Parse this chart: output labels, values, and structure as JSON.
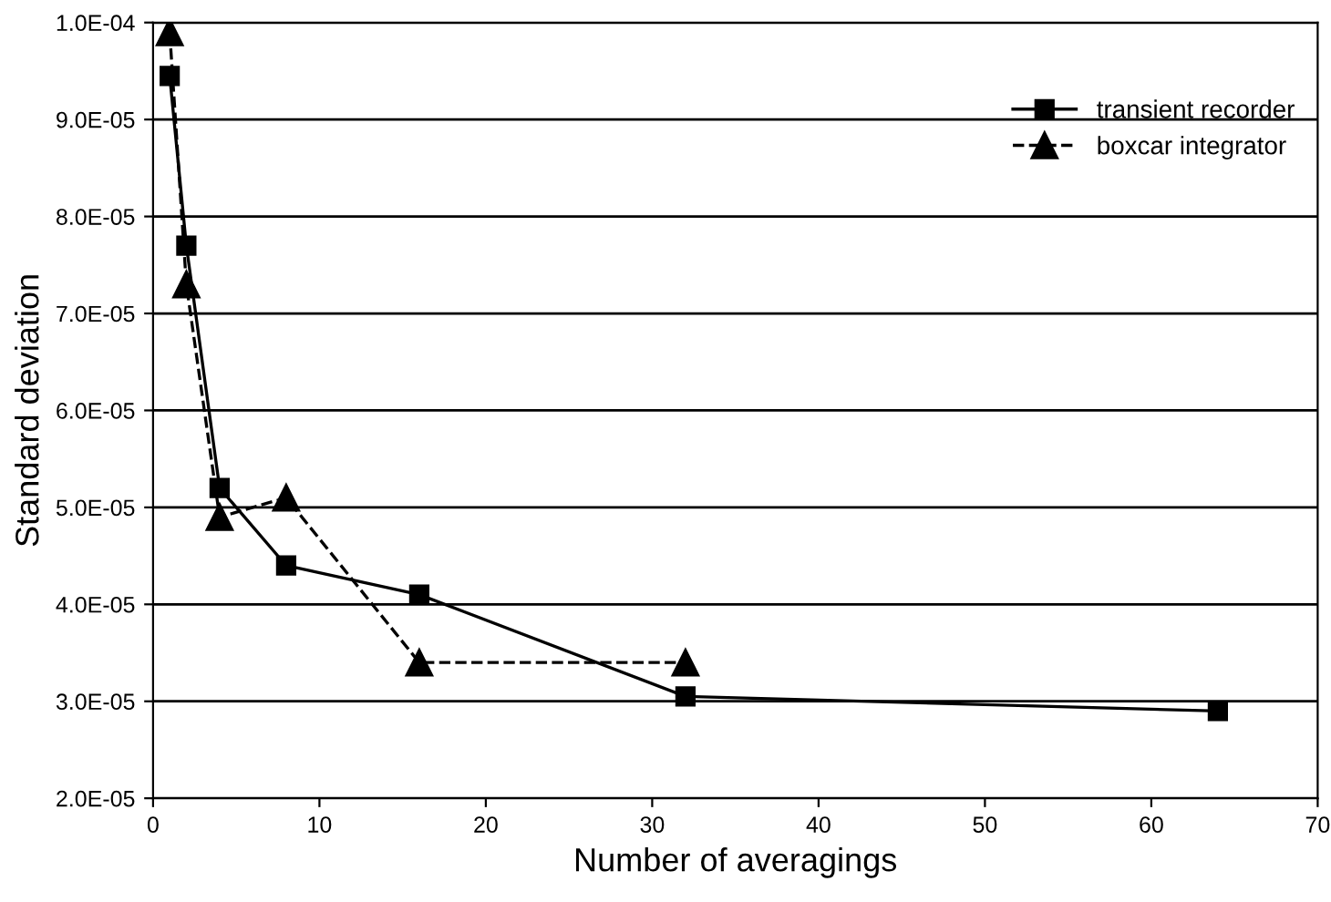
{
  "chart_data": {
    "type": "line",
    "xlabel": "Number of averagings",
    "ylabel": "Standard deviation",
    "series": [
      {
        "name": "transient recorder",
        "color": "#000000",
        "marker": "square",
        "line_style": "solid",
        "x": [
          1,
          2,
          4,
          8,
          16,
          32,
          64
        ],
        "values": [
          9.45e-05,
          7.7e-05,
          5.2e-05,
          4.4e-05,
          4.1e-05,
          3.05e-05,
          2.9e-05
        ]
      },
      {
        "name": "boxcar integrator",
        "color": "#000000",
        "marker": "triangle",
        "line_style": "dashed",
        "x": [
          1,
          2,
          4,
          8,
          16,
          32
        ],
        "values": [
          9.9e-05,
          7.3e-05,
          4.9e-05,
          5.1e-05,
          3.4e-05,
          3.4e-05
        ]
      }
    ],
    "xlim": [
      0,
      70
    ],
    "xticks": [
      0,
      10,
      20,
      30,
      40,
      50,
      60,
      70
    ],
    "ylim": [
      2e-05,
      0.0001
    ],
    "yticks": [
      {
        "value": 2e-05,
        "label": "2.0E-05"
      },
      {
        "value": 3e-05,
        "label": "3.0E-05"
      },
      {
        "value": 4e-05,
        "label": "4.0E-05"
      },
      {
        "value": 5e-05,
        "label": "5.0E-05"
      },
      {
        "value": 6e-05,
        "label": "6.0E-05"
      },
      {
        "value": 7e-05,
        "label": "7.0E-05"
      },
      {
        "value": 8e-05,
        "label": "8.0E-05"
      },
      {
        "value": 9e-05,
        "label": "9.0E-05"
      },
      {
        "value": 0.0001,
        "label": "1.0E-04"
      }
    ],
    "grid": "y",
    "legend": "top right"
  }
}
